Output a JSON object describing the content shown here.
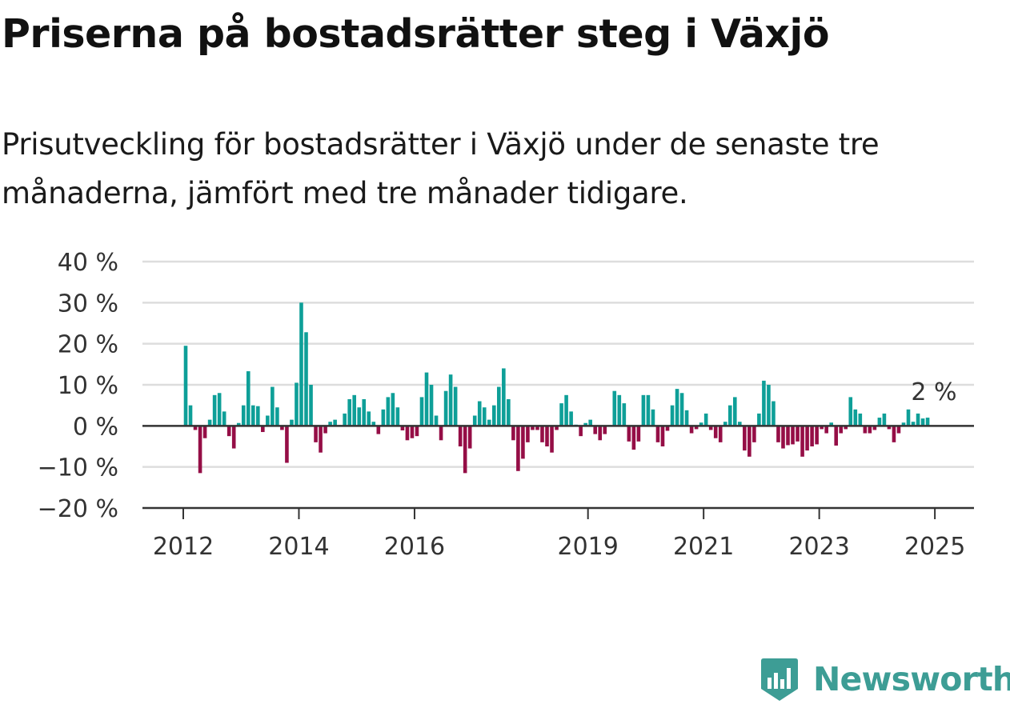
{
  "title": "Priserna på bostadsrätter steg i Växjö",
  "subtitle": "Prisutveckling för bostadsrätter i Växjö under de senaste tre månaderna, jämfört med tre månader tidigare.",
  "brand": "Newsworthy",
  "colors": {
    "positive": "#0e9f98",
    "negative": "#950e46",
    "grid": "#dddddd",
    "axis": "#333333",
    "brand": "#3d9d95"
  },
  "chart_data": {
    "type": "bar",
    "ylim": [
      -20,
      40
    ],
    "yticks": [
      -20,
      -10,
      0,
      10,
      20,
      30,
      40
    ],
    "ytick_labels": [
      "−20 %",
      "−10 %",
      "0 %",
      "10 %",
      "20 %",
      "30 %",
      "40 %"
    ],
    "xticks": [
      2012,
      2014,
      2016,
      2019,
      2021,
      2023,
      2025
    ],
    "xtick_labels": [
      "2012",
      "2014",
      "2016",
      "2019",
      "2021",
      "2023",
      "2025"
    ],
    "x_start": "2012-01",
    "annotation": "2 %",
    "grid": "horizontal",
    "values": [
      19.5,
      5,
      -1,
      -11.5,
      -3,
      1.5,
      7.5,
      8,
      3.5,
      -2.5,
      -5.5,
      0.7,
      5,
      13.3,
      5,
      4.8,
      -1.5,
      2.5,
      9.5,
      4.5,
      -1,
      -9,
      1.5,
      10.5,
      30,
      22.8,
      10,
      -4,
      -6.5,
      -1.8,
      1,
      1.5,
      0.2,
      3,
      6.5,
      7.5,
      4.5,
      6.5,
      3.5,
      1,
      -2,
      4,
      7,
      8,
      4.5,
      -1.1,
      -3.5,
      -3,
      -2.5,
      7,
      13,
      10,
      2.5,
      -3.5,
      8.5,
      12.5,
      9.5,
      -5,
      -11.5,
      -5.5,
      2.5,
      6,
      4.5,
      1.5,
      5,
      9.5,
      14,
      6.5,
      -3.5,
      -11,
      -8,
      -4,
      -1,
      -1,
      -4,
      -5,
      -6.5,
      -1,
      5.5,
      7.5,
      3.5,
      0.3,
      -2.5,
      0.7,
      1.5,
      -2,
      -3.5,
      -2,
      0.2,
      8.5,
      7.5,
      5.5,
      -3.8,
      -5.8,
      -3.8,
      7.5,
      7.5,
      4,
      -4,
      -5,
      -1.2,
      5,
      9,
      8,
      3.8,
      -1.8,
      -0.8,
      0.8,
      3,
      -1,
      -3,
      -4,
      1,
      5,
      7,
      1,
      -6,
      -7.5,
      -4,
      3,
      11,
      10,
      6,
      -4,
      -5.5,
      -4.7,
      -4.5,
      -3.8,
      -7.5,
      -6,
      -5,
      -4.5,
      -0.8,
      -1.8,
      0.8,
      -4.8,
      -1.8,
      -0.8,
      7,
      4,
      3,
      -1.8,
      -1.8,
      -1,
      2,
      3,
      -0.8,
      -4,
      -1.8,
      0.8,
      4,
      1,
      3,
      1.8,
      2
    ]
  }
}
